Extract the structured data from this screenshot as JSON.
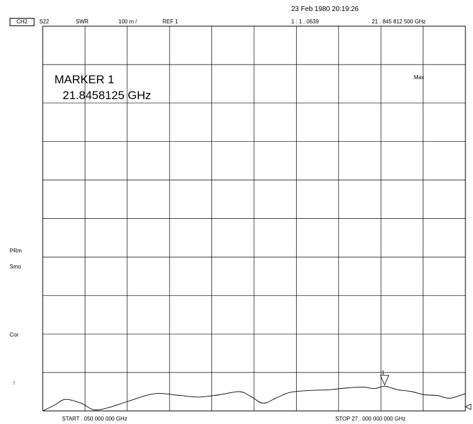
{
  "header": {
    "timestamp": "23 Feb 1980  20:19:26",
    "channel": "CH2",
    "param": "S22",
    "format": "SWR",
    "scale": "100 m /",
    "ref": "REF 1",
    "marker_readout_value": "1 :  1 . 0639",
    "marker_readout_freq": "21 . 845  812  500  GHz"
  },
  "annotations": {
    "marker_title": "MARKER 1",
    "marker_freq": "21.8458125 GHz",
    "max_label": "Max",
    "marker_number": "1"
  },
  "side_labels": {
    "prm": "PRm",
    "smo": "Smo",
    "cor": "Cor",
    "ref_arrow": "↑"
  },
  "footer": {
    "start": "START    . 050    000    000    GHz",
    "stop": "STOP    27 . 000    000    000    GHz"
  },
  "chart_data": {
    "type": "line",
    "xlabel": "",
    "ylabel": "",
    "xlim": [
      0.05,
      27.0
    ],
    "ylim": [
      1.0,
      2.0
    ],
    "grid": true,
    "grid_divisions": {
      "x": 10,
      "y": 10
    },
    "marker": {
      "x": 21.8458125,
      "y": 1.0639
    },
    "series": [
      {
        "points": [
          [
            0.05,
            1.0
          ],
          [
            0.8,
            1.015
          ],
          [
            1.5,
            1.03
          ],
          [
            2.5,
            1.02
          ],
          [
            3.3,
            1.003
          ],
          [
            4.2,
            1.008
          ],
          [
            5.5,
            1.025
          ],
          [
            7.2,
            1.045
          ],
          [
            8.8,
            1.04
          ],
          [
            10.0,
            1.036
          ],
          [
            11.3,
            1.042
          ],
          [
            12.6,
            1.05
          ],
          [
            13.3,
            1.038
          ],
          [
            14.1,
            1.02
          ],
          [
            14.9,
            1.033
          ],
          [
            15.8,
            1.048
          ],
          [
            17.0,
            1.053
          ],
          [
            18.3,
            1.055
          ],
          [
            19.5,
            1.06
          ],
          [
            20.5,
            1.062
          ],
          [
            21.2,
            1.058
          ],
          [
            21.85,
            1.064
          ],
          [
            22.7,
            1.055
          ],
          [
            23.6,
            1.05
          ],
          [
            24.4,
            1.042
          ],
          [
            25.2,
            1.04
          ],
          [
            26.0,
            1.033
          ],
          [
            27.0,
            1.045
          ]
        ]
      }
    ]
  }
}
